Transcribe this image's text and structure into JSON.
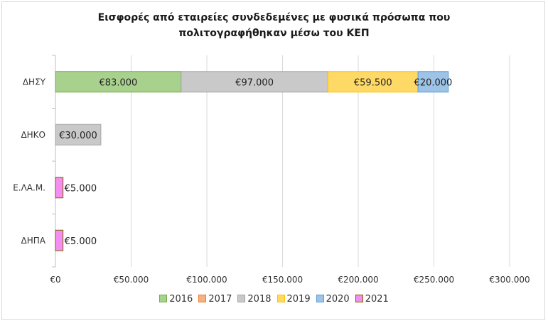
{
  "chart_data": {
    "type": "bar",
    "orientation": "horizontal",
    "stacked": true,
    "title_lines": [
      "Εισφορές από εταιρείες συνδεδεμένες με φυσικά πρόσωπα που",
      "πολιτογραφήθηκαν μέσω του ΚΕΠ"
    ],
    "categories": [
      "ΔΗΣΥ",
      "ΔΗΚΟ",
      "Ε.ΛΑ.Μ.",
      "ΔΗΠΑ"
    ],
    "series": [
      {
        "name": "2016",
        "color": "#a9d18e",
        "border": "#70ad47",
        "values": [
          83000,
          0,
          0,
          0
        ],
        "labels": [
          "€83.000",
          "",
          "",
          ""
        ]
      },
      {
        "name": "2017",
        "color": "#f4b183",
        "border": "#ed7d31",
        "values": [
          0,
          0,
          0,
          0
        ],
        "labels": [
          "",
          "",
          "",
          ""
        ]
      },
      {
        "name": "2018",
        "color": "#c9c9c9",
        "border": "#a5a5a5",
        "values": [
          97000,
          30000,
          0,
          0
        ],
        "labels": [
          "€97.000",
          "€30.000",
          "",
          ""
        ]
      },
      {
        "name": "2019",
        "color": "#ffd966",
        "border": "#ffc000",
        "values": [
          59500,
          0,
          0,
          0
        ],
        "labels": [
          "€59.500",
          "",
          "",
          ""
        ]
      },
      {
        "name": "2020",
        "color": "#9dc3e6",
        "border": "#5b9bd5",
        "values": [
          20000,
          0,
          0,
          0
        ],
        "labels": [
          "€20.000",
          "",
          "",
          ""
        ]
      },
      {
        "name": "2021",
        "color": "#f48ef0",
        "border": "#7f6000",
        "values": [
          0,
          0,
          5000,
          5000
        ],
        "labels": [
          "",
          "",
          "€5.000",
          "€5.000"
        ]
      }
    ],
    "xlim": [
      0,
      300000
    ],
    "x_ticks": [
      0,
      50000,
      100000,
      150000,
      200000,
      250000,
      300000
    ],
    "x_tick_labels": [
      "€0",
      "€50.000",
      "€100.000",
      "€150.000",
      "€200.000",
      "€250.000",
      "€300.000"
    ],
    "grid": "vertical",
    "legend_position": "bottom"
  }
}
